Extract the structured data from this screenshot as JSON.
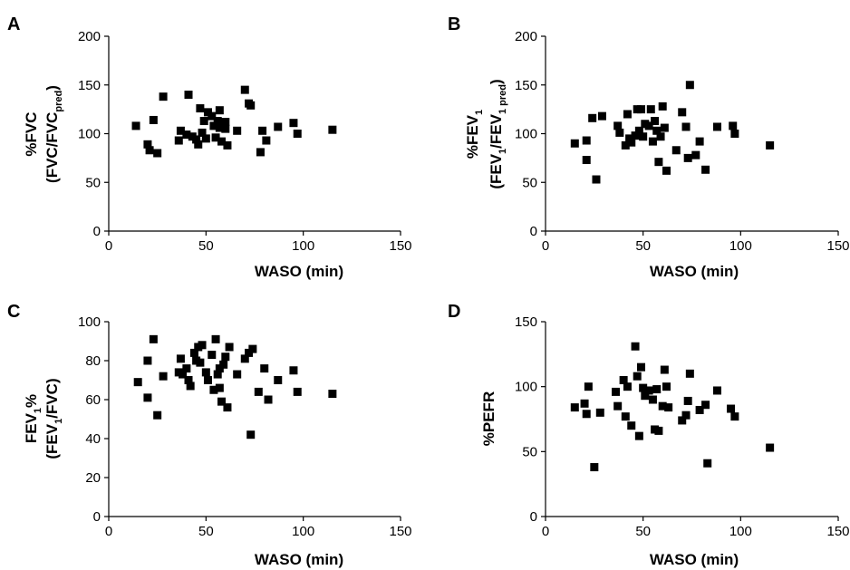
{
  "chart_data": [
    {
      "panel": "A",
      "type": "scatter",
      "xlabel": "WASO (min)",
      "ylabel_line1": "%FVC",
      "ylabel_line2": {
        "main": "(FVC/FVC",
        "sub": "pred",
        "close": ")"
      },
      "xlim": [
        0,
        150
      ],
      "ylim": [
        0,
        200
      ],
      "xticks": [
        0,
        50,
        100,
        150
      ],
      "yticks": [
        0,
        50,
        100,
        150,
        200
      ],
      "points": [
        [
          14,
          108
        ],
        [
          20,
          89
        ],
        [
          21,
          83
        ],
        [
          23,
          114
        ],
        [
          25,
          80
        ],
        [
          28,
          138
        ],
        [
          36,
          93
        ],
        [
          37,
          103
        ],
        [
          40,
          99
        ],
        [
          41,
          140
        ],
        [
          43,
          97
        ],
        [
          45,
          94
        ],
        [
          46,
          89
        ],
        [
          47,
          126
        ],
        [
          48,
          101
        ],
        [
          49,
          113
        ],
        [
          50,
          95
        ],
        [
          51,
          122
        ],
        [
          53,
          118
        ],
        [
          54,
          108
        ],
        [
          55,
          96
        ],
        [
          56,
          113
        ],
        [
          57,
          106
        ],
        [
          57,
          124
        ],
        [
          58,
          92
        ],
        [
          60,
          112
        ],
        [
          60,
          105
        ],
        [
          61,
          88
        ],
        [
          66,
          103
        ],
        [
          70,
          145
        ],
        [
          72,
          131
        ],
        [
          73,
          129
        ],
        [
          78,
          81
        ],
        [
          79,
          103
        ],
        [
          81,
          93
        ],
        [
          87,
          107
        ],
        [
          95,
          111
        ],
        [
          97,
          100
        ],
        [
          115,
          104
        ]
      ]
    },
    {
      "panel": "B",
      "type": "scatter",
      "xlabel": "WASO (min)",
      "ylabel_line1": {
        "main": "%FEV",
        "sub": "1"
      },
      "ylabel_line2": {
        "a": "(FEV",
        "a_sub": "1",
        "b": "/FEV",
        "b_sub": "1 pred",
        "close": ")"
      },
      "xlim": [
        0,
        150
      ],
      "ylim": [
        0,
        200
      ],
      "xticks": [
        0,
        50,
        100,
        150
      ],
      "yticks": [
        0,
        50,
        100,
        150,
        200
      ],
      "points": [
        [
          15,
          90
        ],
        [
          21,
          93
        ],
        [
          21,
          73
        ],
        [
          24,
          116
        ],
        [
          26,
          53
        ],
        [
          29,
          118
        ],
        [
          37,
          108
        ],
        [
          38,
          101
        ],
        [
          41,
          88
        ],
        [
          42,
          120
        ],
        [
          43,
          95
        ],
        [
          44,
          91
        ],
        [
          46,
          98
        ],
        [
          47,
          125
        ],
        [
          48,
          103
        ],
        [
          49,
          125
        ],
        [
          50,
          97
        ],
        [
          51,
          110
        ],
        [
          53,
          108
        ],
        [
          54,
          125
        ],
        [
          55,
          92
        ],
        [
          56,
          113
        ],
        [
          57,
          103
        ],
        [
          58,
          71
        ],
        [
          59,
          97
        ],
        [
          60,
          128
        ],
        [
          61,
          106
        ],
        [
          62,
          62
        ],
        [
          67,
          83
        ],
        [
          70,
          122
        ],
        [
          72,
          107
        ],
        [
          73,
          75
        ],
        [
          74,
          150
        ],
        [
          77,
          78
        ],
        [
          79,
          92
        ],
        [
          82,
          63
        ],
        [
          88,
          107
        ],
        [
          96,
          108
        ],
        [
          97,
          100
        ],
        [
          115,
          88
        ]
      ]
    },
    {
      "panel": "C",
      "type": "scatter",
      "xlabel": "WASO (min)",
      "ylabel_line1": {
        "main": "FEV",
        "sub": "1",
        "rest": "%"
      },
      "ylabel_line2": {
        "a": "(FEV",
        "a_sub": "1",
        "b": "/FVC)"
      },
      "xlim": [
        0,
        150
      ],
      "ylim": [
        0,
        100
      ],
      "xticks": [
        0,
        50,
        100,
        150
      ],
      "yticks": [
        0,
        20,
        40,
        60,
        80,
        100
      ],
      "points": [
        [
          15,
          69
        ],
        [
          20,
          80
        ],
        [
          20,
          61
        ],
        [
          23,
          91
        ],
        [
          25,
          52
        ],
        [
          28,
          72
        ],
        [
          36,
          74
        ],
        [
          37,
          81
        ],
        [
          38,
          73
        ],
        [
          40,
          76
        ],
        [
          41,
          70
        ],
        [
          42,
          67
        ],
        [
          44,
          84
        ],
        [
          45,
          80
        ],
        [
          46,
          87
        ],
        [
          47,
          79
        ],
        [
          48,
          88
        ],
        [
          50,
          74
        ],
        [
          51,
          70
        ],
        [
          53,
          83
        ],
        [
          54,
          65
        ],
        [
          55,
          91
        ],
        [
          56,
          73
        ],
        [
          57,
          66
        ],
        [
          57,
          76
        ],
        [
          58,
          59
        ],
        [
          59,
          78
        ],
        [
          60,
          82
        ],
        [
          61,
          56
        ],
        [
          62,
          87
        ],
        [
          66,
          73
        ],
        [
          70,
          81
        ],
        [
          72,
          84
        ],
        [
          73,
          42
        ],
        [
          74,
          86
        ],
        [
          77,
          64
        ],
        [
          80,
          76
        ],
        [
          82,
          60
        ],
        [
          87,
          70
        ],
        [
          95,
          75
        ],
        [
          97,
          64
        ],
        [
          115,
          63
        ]
      ]
    },
    {
      "panel": "D",
      "type": "scatter",
      "xlabel": "WASO (min)",
      "ylabel_line1": "%PEFR",
      "xlim": [
        0,
        150
      ],
      "ylim": [
        0,
        150
      ],
      "xticks": [
        0,
        50,
        100,
        150
      ],
      "yticks": [
        0,
        50,
        100,
        150
      ],
      "points": [
        [
          15,
          84
        ],
        [
          20,
          87
        ],
        [
          21,
          79
        ],
        [
          22,
          100
        ],
        [
          25,
          38
        ],
        [
          28,
          80
        ],
        [
          36,
          96
        ],
        [
          37,
          85
        ],
        [
          40,
          105
        ],
        [
          41,
          77
        ],
        [
          42,
          100
        ],
        [
          44,
          70
        ],
        [
          46,
          131
        ],
        [
          47,
          108
        ],
        [
          48,
          62
        ],
        [
          49,
          115
        ],
        [
          50,
          99
        ],
        [
          51,
          93
        ],
        [
          53,
          97
        ],
        [
          55,
          90
        ],
        [
          56,
          67
        ],
        [
          57,
          98
        ],
        [
          58,
          66
        ],
        [
          60,
          85
        ],
        [
          61,
          113
        ],
        [
          62,
          100
        ],
        [
          63,
          84
        ],
        [
          70,
          74
        ],
        [
          72,
          78
        ],
        [
          73,
          89
        ],
        [
          74,
          110
        ],
        [
          79,
          82
        ],
        [
          82,
          86
        ],
        [
          83,
          41
        ],
        [
          88,
          97
        ],
        [
          95,
          83
        ],
        [
          97,
          77
        ],
        [
          115,
          53
        ]
      ]
    }
  ]
}
